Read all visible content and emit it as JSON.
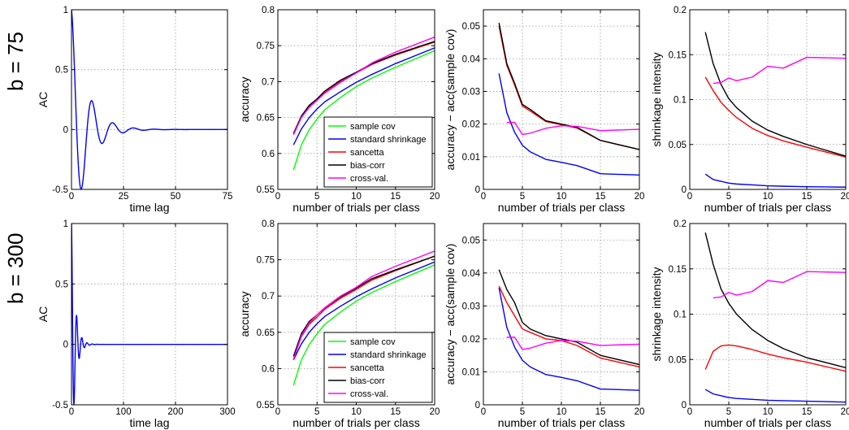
{
  "row_labels": [
    "b = 75",
    "b = 300"
  ],
  "chart_data": [
    {
      "type": "line",
      "ylabel": "AC",
      "xlabel": "time lag",
      "xlim": [
        0,
        75
      ],
      "ylim": [
        -0.5,
        1
      ],
      "xticks": [
        0,
        25,
        50,
        75
      ],
      "yticks": [
        -0.5,
        0,
        0.5,
        1
      ],
      "ytick_labels": [
        "-0.5",
        "0",
        "0.5",
        "1"
      ],
      "grid": true,
      "series": [
        {
          "color": "#0000ff",
          "function": "damped_cosine",
          "amplitude": 1,
          "decay_per_lag": 0.145,
          "period_lags": 10
        }
      ]
    },
    {
      "type": "line",
      "ylabel": "accuracy",
      "xlabel": "number of trials per class",
      "xlim": [
        0,
        20
      ],
      "ylim": [
        0.55,
        0.8
      ],
      "xticks": [
        0,
        5,
        10,
        15,
        20
      ],
      "yticks": [
        0.55,
        0.6,
        0.65,
        0.7,
        0.75,
        0.8
      ],
      "grid": true,
      "legend": "bottom-right",
      "x": [
        2,
        3,
        4,
        5,
        6,
        8,
        10,
        12,
        15,
        20
      ],
      "series": [
        {
          "name": "sample cov",
          "color": "#00ff00",
          "values": [
            0.577,
            0.612,
            0.633,
            0.648,
            0.661,
            0.678,
            0.693,
            0.705,
            0.72,
            0.743
          ]
        },
        {
          "name": "standard shrinkage",
          "color": "#0000ff",
          "values": [
            0.612,
            0.634,
            0.65,
            0.662,
            0.672,
            0.686,
            0.699,
            0.71,
            0.725,
            0.747
          ]
        },
        {
          "name": "sancetta",
          "color": "#ff0000",
          "values": [
            0.627,
            0.65,
            0.665,
            0.674,
            0.685,
            0.7,
            0.712,
            0.724,
            0.737,
            0.755
          ]
        },
        {
          "name": "bias-corr",
          "color": "#000000",
          "values": [
            0.628,
            0.652,
            0.667,
            0.676,
            0.687,
            0.702,
            0.713,
            0.725,
            0.738,
            0.756
          ]
        },
        {
          "name": "cross-val.",
          "color": "#ff00ff",
          "values": [
            0.626,
            0.65,
            0.664,
            0.674,
            0.684,
            0.699,
            0.712,
            0.726,
            0.741,
            0.762
          ]
        }
      ]
    },
    {
      "type": "line",
      "ylabel": "accuracy − acc(sample cov)",
      "xlabel": "number of trials per class",
      "xlim": [
        0,
        20
      ],
      "ylim": [
        0,
        0.055
      ],
      "xticks": [
        0,
        5,
        10,
        15,
        20
      ],
      "yticks": [
        0,
        0.01,
        0.02,
        0.03,
        0.04,
        0.05
      ],
      "grid": true,
      "x": [
        2,
        3,
        4,
        5,
        6,
        8,
        10,
        12,
        15,
        20
      ],
      "series": [
        {
          "name": "standard shrinkage",
          "color": "#0000ff",
          "values": [
            0.0355,
            0.0235,
            0.0175,
            0.0135,
            0.0115,
            0.0092,
            0.0083,
            0.0073,
            0.0048,
            0.0044
          ]
        },
        {
          "name": "sancetta",
          "color": "#ff0000",
          "values": [
            0.05,
            0.038,
            0.032,
            0.0255,
            0.024,
            0.0208,
            0.0198,
            0.0188,
            0.015,
            0.0122
          ]
        },
        {
          "name": "bias-corr",
          "color": "#000000",
          "values": [
            0.051,
            0.0385,
            0.0325,
            0.026,
            0.0245,
            0.021,
            0.02,
            0.019,
            0.015,
            0.0122
          ]
        },
        {
          "name": "cross-val.",
          "color": "#ff00ff",
          "values": [
            null,
            0.0205,
            0.0205,
            0.0168,
            0.0172,
            0.0187,
            0.0195,
            0.0193,
            0.018,
            0.0184
          ]
        }
      ]
    },
    {
      "type": "line",
      "ylabel": "shrinkage intensity",
      "xlabel": "number of trials per class",
      "xlim": [
        0,
        20
      ],
      "ylim": [
        0,
        0.2
      ],
      "xticks": [
        0,
        5,
        10,
        15,
        20
      ],
      "yticks": [
        0,
        0.05,
        0.1,
        0.15,
        0.2
      ],
      "grid": true,
      "x": [
        2,
        3,
        4,
        5,
        6,
        8,
        10,
        12,
        15,
        20
      ],
      "series": [
        {
          "name": "standard shrinkage",
          "color": "#0000ff",
          "values": [
            0.017,
            0.011,
            0.009,
            0.007,
            0.006,
            0.005,
            0.004,
            0.0035,
            0.003,
            0.0025
          ]
        },
        {
          "name": "sancetta",
          "color": "#ff0000",
          "values": [
            0.125,
            0.11,
            0.097,
            0.088,
            0.08,
            0.068,
            0.06,
            0.054,
            0.047,
            0.036
          ]
        },
        {
          "name": "bias-corr",
          "color": "#000000",
          "values": [
            0.175,
            0.14,
            0.117,
            0.101,
            0.091,
            0.076,
            0.066,
            0.059,
            0.05,
            0.037
          ]
        },
        {
          "name": "cross-val.",
          "color": "#ff00ff",
          "values": [
            null,
            0.118,
            0.119,
            0.124,
            0.121,
            0.125,
            0.137,
            0.135,
            0.147,
            0.146
          ]
        }
      ]
    },
    {
      "type": "line",
      "ylabel": "AC",
      "xlabel": "time lag",
      "xlim": [
        0,
        300
      ],
      "ylim": [
        -0.5,
        1
      ],
      "xticks": [
        0,
        100,
        200,
        300
      ],
      "yticks": [
        -0.5,
        0,
        0.5,
        1
      ],
      "ytick_labels": [
        "-0.5",
        "0",
        "0.5",
        "1"
      ],
      "grid": true,
      "series": [
        {
          "color": "#0000ff",
          "function": "damped_cosine",
          "amplitude": 1,
          "decay_per_lag": 0.145,
          "period_lags": 10
        }
      ]
    },
    {
      "type": "line",
      "ylabel": "accuracy",
      "xlabel": "number of trials per class",
      "xlim": [
        0,
        20
      ],
      "ylim": [
        0.55,
        0.8
      ],
      "xticks": [
        0,
        5,
        10,
        15,
        20
      ],
      "yticks": [
        0.55,
        0.6,
        0.65,
        0.7,
        0.75,
        0.8
      ],
      "grid": true,
      "legend": "bottom-right",
      "x": [
        2,
        3,
        4,
        5,
        6,
        8,
        10,
        12,
        15,
        20
      ],
      "series": [
        {
          "name": "sample cov",
          "color": "#00ff00",
          "values": [
            0.577,
            0.612,
            0.633,
            0.648,
            0.661,
            0.678,
            0.693,
            0.705,
            0.72,
            0.743
          ]
        },
        {
          "name": "standard shrinkage",
          "color": "#0000ff",
          "values": [
            0.612,
            0.634,
            0.65,
            0.662,
            0.672,
            0.686,
            0.699,
            0.71,
            0.725,
            0.747
          ]
        },
        {
          "name": "sancetta",
          "color": "#ff0000",
          "values": [
            0.613,
            0.644,
            0.661,
            0.671,
            0.682,
            0.697,
            0.709,
            0.722,
            0.735,
            0.755
          ]
        },
        {
          "name": "bias-corr",
          "color": "#000000",
          "values": [
            0.617,
            0.648,
            0.665,
            0.674,
            0.684,
            0.699,
            0.711,
            0.724,
            0.736,
            0.755
          ]
        },
        {
          "name": "cross-val.",
          "color": "#ff00ff",
          "values": [
            0.613,
            0.645,
            0.663,
            0.674,
            0.684,
            0.7,
            0.712,
            0.727,
            0.741,
            0.762
          ]
        }
      ]
    },
    {
      "type": "line",
      "ylabel": "accuracy − acc(sample cov)",
      "xlabel": "number of trials per class",
      "xlim": [
        0,
        20
      ],
      "ylim": [
        0,
        0.055
      ],
      "xticks": [
        0,
        5,
        10,
        15,
        20
      ],
      "yticks": [
        0,
        0.01,
        0.02,
        0.03,
        0.04,
        0.05
      ],
      "grid": true,
      "x": [
        2,
        3,
        4,
        5,
        6,
        8,
        10,
        12,
        15,
        20
      ],
      "series": [
        {
          "name": "standard shrinkage",
          "color": "#0000ff",
          "values": [
            0.0355,
            0.0235,
            0.0175,
            0.0135,
            0.0115,
            0.0092,
            0.0083,
            0.0073,
            0.0048,
            0.0044
          ]
        },
        {
          "name": "sancetta",
          "color": "#ff0000",
          "values": [
            0.036,
            0.031,
            0.027,
            0.023,
            0.022,
            0.02,
            0.0195,
            0.018,
            0.0142,
            0.0115
          ]
        },
        {
          "name": "bias-corr",
          "color": "#000000",
          "values": [
            0.041,
            0.035,
            0.031,
            0.025,
            0.023,
            0.021,
            0.02,
            0.019,
            0.015,
            0.0122
          ]
        },
        {
          "name": "cross-val.",
          "color": "#ff00ff",
          "values": [
            null,
            0.0205,
            0.0205,
            0.0168,
            0.0172,
            0.0187,
            0.0195,
            0.0193,
            0.018,
            0.0184
          ]
        }
      ]
    },
    {
      "type": "line",
      "ylabel": "shrinkage intensity",
      "xlabel": "number of trials per class",
      "xlim": [
        0,
        20
      ],
      "ylim": [
        0,
        0.2
      ],
      "xticks": [
        0,
        5,
        10,
        15,
        20
      ],
      "yticks": [
        0,
        0.05,
        0.1,
        0.15,
        0.2
      ],
      "grid": true,
      "x": [
        2,
        3,
        4,
        5,
        6,
        8,
        10,
        12,
        15,
        20
      ],
      "series": [
        {
          "name": "standard shrinkage",
          "color": "#0000ff",
          "values": [
            0.017,
            0.012,
            0.01,
            0.008,
            0.007,
            0.006,
            0.005,
            0.0045,
            0.004,
            0.003
          ]
        },
        {
          "name": "sancetta",
          "color": "#ff0000",
          "values": [
            0.039,
            0.059,
            0.065,
            0.066,
            0.065,
            0.061,
            0.056,
            0.052,
            0.047,
            0.037
          ]
        },
        {
          "name": "bias-corr",
          "color": "#000000",
          "values": [
            0.19,
            0.155,
            0.128,
            0.112,
            0.1,
            0.083,
            0.071,
            0.062,
            0.052,
            0.041
          ]
        },
        {
          "name": "cross-val.",
          "color": "#ff00ff",
          "values": [
            null,
            0.118,
            0.119,
            0.124,
            0.121,
            0.125,
            0.137,
            0.135,
            0.147,
            0.146
          ]
        }
      ]
    }
  ]
}
